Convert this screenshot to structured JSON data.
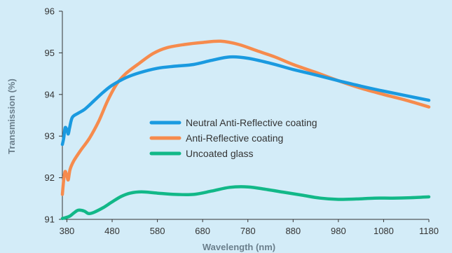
{
  "chart_data": {
    "type": "line",
    "xlabel": "Wavelength (nm)",
    "ylabel": "Transmission (%)",
    "xlim": [
      370,
      1180
    ],
    "ylim": [
      91,
      96
    ],
    "x_ticks": [
      380,
      480,
      580,
      680,
      780,
      880,
      980,
      1080,
      1180
    ],
    "y_ticks": [
      91,
      92,
      93,
      94,
      95,
      96
    ],
    "grid": false,
    "legend_position": "center",
    "series": [
      {
        "name": "Neutral Anti-Reflective coating",
        "color": "#1a9ae0",
        "points": [
          [
            370,
            92.8
          ],
          [
            373,
            92.95
          ],
          [
            376,
            93.2
          ],
          [
            380,
            93.15
          ],
          [
            383,
            93.05
          ],
          [
            386,
            93.2
          ],
          [
            392,
            93.45
          ],
          [
            405,
            93.55
          ],
          [
            420,
            93.65
          ],
          [
            440,
            93.85
          ],
          [
            460,
            94.05
          ],
          [
            480,
            94.22
          ],
          [
            510,
            94.4
          ],
          [
            540,
            94.52
          ],
          [
            580,
            94.63
          ],
          [
            620,
            94.68
          ],
          [
            660,
            94.72
          ],
          [
            700,
            94.82
          ],
          [
            740,
            94.9
          ],
          [
            780,
            94.87
          ],
          [
            830,
            94.75
          ],
          [
            880,
            94.6
          ],
          [
            930,
            94.47
          ],
          [
            980,
            94.33
          ],
          [
            1030,
            94.2
          ],
          [
            1080,
            94.08
          ],
          [
            1130,
            93.97
          ],
          [
            1180,
            93.86
          ]
        ]
      },
      {
        "name": "Anti-Reflective coating",
        "color": "#f68b4d",
        "points": [
          [
            370,
            91.6
          ],
          [
            373,
            91.95
          ],
          [
            376,
            92.15
          ],
          [
            380,
            92.05
          ],
          [
            383,
            91.95
          ],
          [
            387,
            92.2
          ],
          [
            395,
            92.4
          ],
          [
            410,
            92.65
          ],
          [
            430,
            92.95
          ],
          [
            450,
            93.35
          ],
          [
            470,
            93.85
          ],
          [
            490,
            94.25
          ],
          [
            510,
            94.5
          ],
          [
            540,
            94.75
          ],
          [
            570,
            94.98
          ],
          [
            600,
            95.12
          ],
          [
            640,
            95.2
          ],
          [
            680,
            95.25
          ],
          [
            720,
            95.28
          ],
          [
            760,
            95.2
          ],
          [
            800,
            95.05
          ],
          [
            840,
            94.9
          ],
          [
            880,
            94.72
          ],
          [
            930,
            94.53
          ],
          [
            980,
            94.33
          ],
          [
            1030,
            94.15
          ],
          [
            1080,
            94.0
          ],
          [
            1130,
            93.86
          ],
          [
            1180,
            93.7
          ]
        ]
      },
      {
        "name": "Uncoated glass",
        "color": "#12b888",
        "points": [
          [
            370,
            91.02
          ],
          [
            385,
            91.07
          ],
          [
            395,
            91.15
          ],
          [
            405,
            91.22
          ],
          [
            418,
            91.2
          ],
          [
            428,
            91.14
          ],
          [
            440,
            91.17
          ],
          [
            460,
            91.28
          ],
          [
            480,
            91.42
          ],
          [
            500,
            91.55
          ],
          [
            520,
            91.63
          ],
          [
            545,
            91.66
          ],
          [
            580,
            91.63
          ],
          [
            620,
            91.6
          ],
          [
            660,
            91.6
          ],
          [
            700,
            91.68
          ],
          [
            740,
            91.77
          ],
          [
            780,
            91.78
          ],
          [
            820,
            91.72
          ],
          [
            860,
            91.65
          ],
          [
            900,
            91.58
          ],
          [
            940,
            91.51
          ],
          [
            980,
            91.48
          ],
          [
            1020,
            91.49
          ],
          [
            1060,
            91.51
          ],
          [
            1100,
            91.51
          ],
          [
            1140,
            91.52
          ],
          [
            1180,
            91.54
          ]
        ]
      }
    ]
  }
}
